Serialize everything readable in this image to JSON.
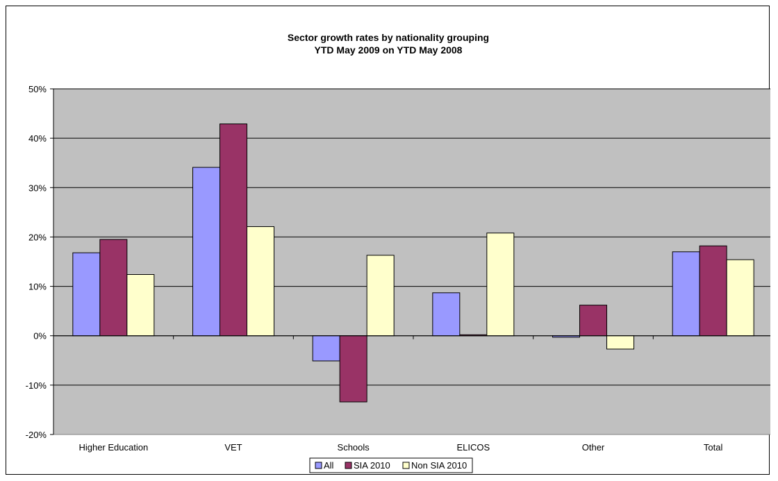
{
  "chart_data": {
    "type": "bar",
    "title": "Sector growth rates by nationality grouping",
    "subtitle": "YTD May 2009 on YTD May 2008",
    "xlabel": "",
    "ylabel": "",
    "categories": [
      "Higher Education",
      "VET",
      "Schools",
      "ELICOS",
      "Other",
      "Total"
    ],
    "series": [
      {
        "name": "All",
        "color": "#9999ff",
        "values": [
          16.8,
          34.1,
          -5.1,
          8.7,
          -0.3,
          17.0
        ]
      },
      {
        "name": "SIA 2010",
        "color": "#993366",
        "values": [
          19.5,
          42.9,
          -13.4,
          0.2,
          6.2,
          18.2
        ]
      },
      {
        "name": "Non SIA 2010",
        "color": "#ffffcc",
        "values": [
          12.4,
          22.1,
          16.3,
          20.8,
          -2.7,
          15.4
        ]
      }
    ],
    "ylim": [
      -20,
      50
    ],
    "yticks": [
      50,
      40,
      30,
      20,
      10,
      0,
      -10,
      -20
    ],
    "ytick_format": "percent",
    "grid": true,
    "plot_background": "#c0c0c0",
    "legend": "bottom-center"
  }
}
